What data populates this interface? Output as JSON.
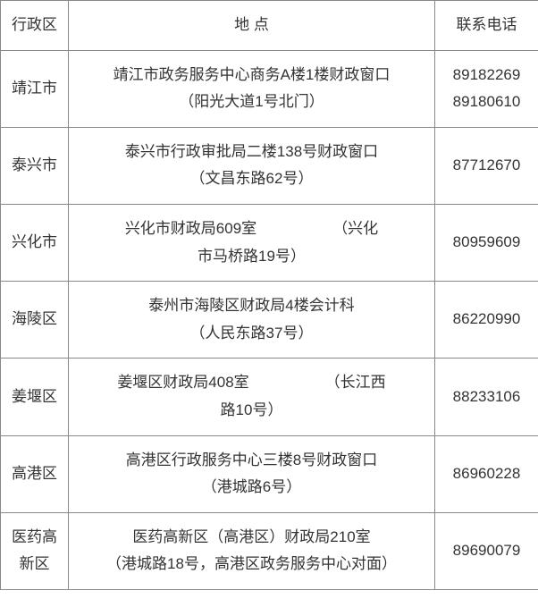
{
  "headers": {
    "region": "行政区",
    "location": "地 点",
    "phone": "联系电话"
  },
  "rows": [
    {
      "region": "靖江市",
      "location_l1": "靖江市政务服务中心商务A楼1楼财政窗口",
      "location_l2": "（阳光大道1号北门）",
      "phone_l1": "89182269",
      "phone_l2": "89180610"
    },
    {
      "region": "泰兴市",
      "location_l1": "泰兴市行政审批局二楼138号财政窗口",
      "location_l2": "（文昌东路62号）",
      "phone_l1": "87712670",
      "phone_l2": ""
    },
    {
      "region": "兴化市",
      "location_l1": "兴化市财政局609室     （兴化",
      "location_l2": "市马桥路19号）",
      "phone_l1": "80959609",
      "phone_l2": ""
    },
    {
      "region": "海陵区",
      "location_l1": "泰州市海陵区财政局4楼会计科",
      "location_l2": "（人民东路37号）",
      "phone_l1": "86220990",
      "phone_l2": ""
    },
    {
      "region": "姜堰区",
      "location_l1": "姜堰区财政局408室     （长江西",
      "location_l2": "路10号）",
      "phone_l1": "88233106",
      "phone_l2": ""
    },
    {
      "region": "高港区",
      "location_l1": "高港区行政服务中心三楼8号财政窗口",
      "location_l2": "（港城路6号）",
      "phone_l1": "86960228",
      "phone_l2": ""
    },
    {
      "region": "医药高新区",
      "location_l1": "医药高新区（高港区）财政局210室",
      "location_l2": "（港城路18号，高港区政务服务中心对面）",
      "phone_l1": "89690079",
      "phone_l2": ""
    }
  ],
  "colors": {
    "border": "#888888",
    "text": "#333333",
    "background": "#ffffff"
  }
}
